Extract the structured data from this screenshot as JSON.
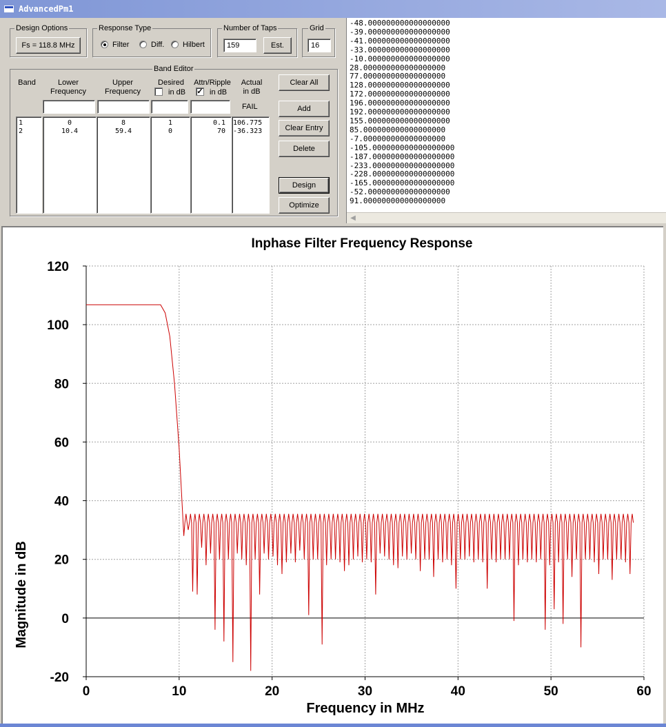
{
  "window": {
    "title": "AdvancedPm1"
  },
  "design_options": {
    "label": "Design Options",
    "fs_button": "Fs = 118.8 MHz"
  },
  "response_type": {
    "label": "Response Type",
    "options": [
      {
        "label": "Filter",
        "selected": true
      },
      {
        "label": "Diff.",
        "selected": false
      },
      {
        "label": "Hilbert",
        "selected": false
      }
    ]
  },
  "taps": {
    "label": "Number of Taps",
    "value": "159",
    "est_button": "Est."
  },
  "grid": {
    "label": "Grid",
    "value": "16"
  },
  "band_editor": {
    "label": "Band Editor",
    "headers": {
      "band": "Band",
      "lower": "Lower\nFrequency",
      "upper": "Upper\nFrequency",
      "desired": "Desired",
      "desired_db": "in dB",
      "attn": "Attn/Ripple",
      "attn_db": "in dB",
      "actual": "Actual\nin dB"
    },
    "desired_in_db_checked": false,
    "attn_in_db_checked": true,
    "status": "FAIL",
    "rows": [
      {
        "band": "1",
        "lower": "0",
        "upper": "8",
        "desired": "1",
        "attn": "0.1",
        "actual": "106.775"
      },
      {
        "band": "2",
        "lower": "10.4",
        "upper": "59.4",
        "desired": "0",
        "attn": "70",
        "actual": "-36.323"
      }
    ],
    "buttons": {
      "clear_all": "Clear All",
      "add": "Add",
      "clear_entry": "Clear Entry",
      "delete": "Delete",
      "design": "Design",
      "optimize": "Optimize"
    }
  },
  "coefficients": [
    "-48.000000000000000000",
    "-39.000000000000000000",
    "-41.000000000000000000",
    "-33.000000000000000000",
    "-10.000000000000000000",
    "28.000000000000000000",
    "77.000000000000000000",
    "128.000000000000000000",
    "172.000000000000000000",
    "196.000000000000000000",
    "192.000000000000000000",
    "155.000000000000000000",
    "85.000000000000000000",
    "-7.000000000000000000",
    "-105.000000000000000000",
    "-187.000000000000000000",
    "-233.000000000000000000",
    "-228.000000000000000000",
    "-165.000000000000000000",
    "-52.000000000000000000",
    "91.000000000000000000"
  ],
  "chart_data": {
    "type": "line",
    "title": "Inphase Filter Frequency Response",
    "xlabel": "Frequency in MHz",
    "ylabel": "Magnitude in dB",
    "xlim": [
      0,
      60
    ],
    "ylim": [
      -20,
      120
    ],
    "xticks": [
      "0",
      "10",
      "20",
      "30",
      "40",
      "50",
      "60"
    ],
    "yticks": [
      "-20",
      "0",
      "20",
      "40",
      "60",
      "80",
      "100",
      "120"
    ],
    "grid": true,
    "line_color": "#cc0000",
    "passband": {
      "x": [
        0,
        8.0,
        8.5,
        9.0,
        9.5,
        10.0,
        10.3
      ],
      "y": [
        106.8,
        106.8,
        104,
        96,
        80,
        58,
        40
      ]
    },
    "stopband": {
      "start_mhz": 10.5,
      "end_mhz": 59.2,
      "lobe_spacing_mhz": 0.48,
      "lobe_peak_db": 35.5,
      "null_db": [
        28,
        30,
        9,
        8,
        24,
        18,
        22,
        -4,
        20,
        -8,
        20,
        -15,
        22,
        20,
        18,
        -18,
        20,
        8,
        22,
        20,
        21,
        18,
        15,
        19,
        22,
        19,
        23,
        20,
        1,
        20,
        20,
        -9,
        18,
        20,
        20,
        19,
        16,
        18,
        20,
        21,
        19,
        20,
        19,
        8,
        22,
        21,
        20,
        18,
        17,
        21,
        20,
        22,
        20,
        16,
        20,
        20,
        14,
        20,
        19,
        20,
        18,
        10,
        20,
        20,
        21,
        19,
        20,
        19,
        10,
        20,
        19,
        20,
        20,
        20,
        -1,
        18,
        20,
        19,
        20,
        19,
        20,
        -4,
        18,
        3,
        19,
        -2,
        20,
        14,
        20,
        -10,
        20,
        20,
        19,
        15,
        20,
        20,
        13,
        20,
        20,
        19,
        15
      ]
    }
  }
}
